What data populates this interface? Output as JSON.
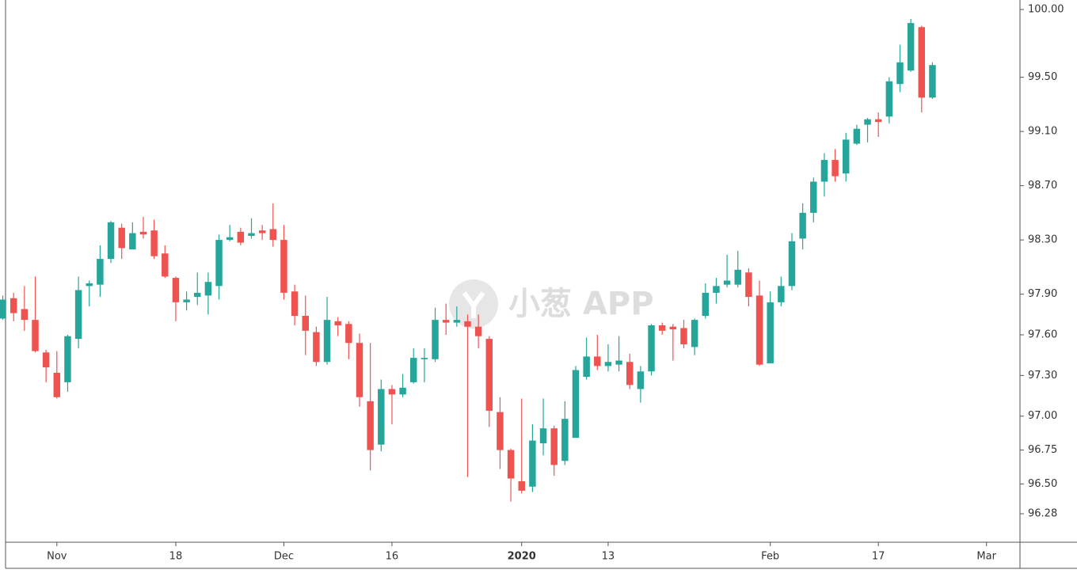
{
  "chart_data": {
    "type": "candlestick",
    "watermark": "小葱 APP",
    "up_color": "#26a69a",
    "down_color": "#ef5350",
    "open": [
      97.72,
      97.87,
      97.79,
      97.71,
      97.47,
      97.32,
      97.25,
      97.57,
      97.96,
      97.97,
      98.16,
      98.39,
      98.23,
      98.36,
      98.37,
      98.2,
      98.02,
      97.84,
      97.88,
      97.89,
      97.96,
      98.3,
      98.36,
      98.33,
      98.37,
      98.38,
      98.3,
      97.92,
      97.74,
      97.62,
      97.4,
      97.7,
      97.68,
      97.54,
      97.11,
      96.79,
      97.2,
      97.16,
      97.25,
      97.42,
      97.42,
      97.71,
      97.69,
      97.7,
      97.66,
      97.57,
      97.03,
      96.75,
      96.52,
      96.48,
      96.8,
      96.91,
      96.67,
      96.84,
      97.29,
      97.44,
      97.37,
      97.38,
      97.4,
      97.2,
      97.33,
      97.67,
      97.66,
      97.65,
      97.51,
      97.74,
      97.91,
      97.97,
      97.97,
      98.06,
      97.89,
      97.39,
      97.84,
      97.96,
      98.31,
      98.5,
      98.73,
      98.89,
      98.79,
      99.01,
      99.15,
      99.19,
      99.21,
      99.45,
      99.55,
      99.87,
      99.35
    ],
    "high": [
      97.89,
      97.91,
      97.96,
      98.03,
      97.49,
      97.48,
      97.6,
      98.03,
      98.0,
      98.26,
      98.44,
      98.42,
      98.43,
      98.47,
      98.45,
      98.26,
      98.03,
      97.92,
      98.06,
      98.06,
      98.34,
      98.41,
      98.39,
      98.46,
      98.41,
      98.57,
      98.41,
      97.97,
      97.89,
      97.66,
      97.88,
      97.73,
      97.7,
      97.61,
      97.54,
      97.27,
      97.23,
      97.31,
      97.5,
      97.5,
      97.8,
      97.83,
      97.81,
      97.75,
      97.75,
      97.59,
      97.14,
      96.76,
      97.13,
      96.94,
      97.13,
      96.93,
      97.11,
      97.37,
      97.58,
      97.6,
      97.53,
      97.59,
      97.46,
      97.37,
      97.68,
      97.69,
      97.68,
      97.71,
      97.72,
      97.98,
      98.02,
      98.19,
      98.22,
      98.09,
      98.0,
      97.92,
      98.03,
      98.35,
      98.57,
      98.76,
      98.94,
      98.97,
      99.09,
      99.15,
      99.2,
      99.24,
      99.5,
      99.74,
      99.93,
      99.88,
      99.61
    ],
    "low": [
      97.71,
      97.7,
      97.63,
      97.47,
      97.25,
      97.13,
      97.18,
      97.5,
      97.81,
      97.88,
      98.13,
      98.16,
      98.23,
      98.31,
      98.16,
      98.02,
      97.7,
      97.78,
      97.82,
      97.75,
      97.86,
      98.29,
      98.26,
      98.31,
      98.3,
      98.25,
      97.86,
      97.67,
      97.45,
      97.37,
      97.38,
      97.59,
      97.42,
      97.07,
      96.6,
      96.74,
      96.94,
      97.14,
      97.24,
      97.25,
      97.4,
      97.6,
      97.66,
      96.55,
      97.5,
      96.92,
      96.61,
      96.37,
      96.43,
      96.44,
      96.71,
      96.56,
      96.64,
      96.84,
      97.27,
      97.34,
      97.33,
      97.33,
      97.2,
      97.1,
      97.3,
      97.6,
      97.41,
      97.5,
      97.45,
      97.72,
      97.83,
      97.95,
      97.95,
      97.81,
      97.37,
      97.39,
      97.81,
      97.93,
      98.23,
      98.43,
      98.62,
      98.73,
      98.73,
      99.0,
      99.02,
      99.06,
      99.16,
      99.39,
      99.54,
      99.24,
      99.34
    ],
    "close": [
      97.86,
      97.76,
      97.71,
      97.48,
      97.36,
      97.14,
      97.59,
      97.93,
      97.98,
      98.16,
      98.43,
      98.24,
      98.35,
      98.34,
      98.18,
      98.03,
      97.84,
      97.86,
      97.91,
      97.99,
      98.3,
      98.32,
      98.28,
      98.35,
      98.35,
      98.3,
      97.91,
      97.74,
      97.63,
      97.4,
      97.71,
      97.67,
      97.54,
      97.14,
      96.75,
      97.2,
      97.16,
      97.21,
      97.43,
      97.43,
      97.71,
      97.69,
      97.71,
      97.66,
      97.59,
      97.04,
      96.75,
      96.54,
      96.45,
      96.82,
      96.91,
      96.64,
      96.98,
      97.34,
      97.44,
      97.37,
      97.4,
      97.41,
      97.23,
      97.33,
      97.67,
      97.63,
      97.64,
      97.53,
      97.71,
      97.91,
      97.96,
      98.0,
      98.08,
      97.88,
      97.38,
      97.84,
      97.96,
      98.29,
      98.5,
      98.73,
      98.89,
      98.77,
      99.04,
      99.12,
      99.19,
      99.17,
      99.47,
      99.61,
      99.9,
      99.35,
      99.59
    ],
    "xlim": [
      -0.26,
      94.1
    ],
    "xticks": [
      {
        "value": 5,
        "label": "Nov"
      },
      {
        "value": 16,
        "label": "18"
      },
      {
        "value": 26,
        "label": "Dec"
      },
      {
        "value": 36,
        "label": "16"
      },
      {
        "value": 48,
        "label": "2020",
        "bold": true
      },
      {
        "value": 56,
        "label": "13"
      },
      {
        "value": 71,
        "label": "Feb"
      },
      {
        "value": 81,
        "label": "17"
      },
      {
        "value": 91,
        "label": "Mar"
      }
    ],
    "ylim": [
      96.07,
      100.07
    ],
    "yticks": [
      {
        "value": 100,
        "label": "100.00"
      },
      {
        "value": 99.5,
        "label": "99.50"
      },
      {
        "value": 99.1,
        "label": "99.10"
      },
      {
        "value": 98.7,
        "label": "98.70"
      },
      {
        "value": 98.3,
        "label": "98.30"
      },
      {
        "value": 97.9,
        "label": "97.90"
      },
      {
        "value": 97.6,
        "label": "97.60"
      },
      {
        "value": 97.3,
        "label": "97.30"
      },
      {
        "value": 97,
        "label": "97.00"
      },
      96.75,
      {
        "value": 96.5,
        "label": "96.50"
      },
      96.28
    ]
  }
}
